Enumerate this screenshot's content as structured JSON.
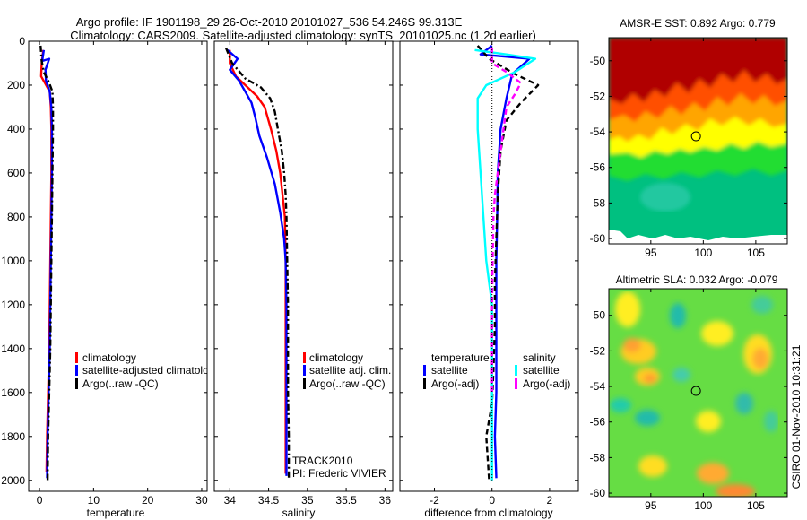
{
  "header": {
    "title": "Argo profile: IF 1901198_29 26-Oct-2010 20101027_536 54.246S 99.313E",
    "subtitle": "Climatology: CARS2009. Satellite-adjusted climatology: synTS_20101025.nc (1.2d earlier)"
  },
  "colors": {
    "climatology": "#ff0000",
    "satellite": "#0000ff",
    "argo": "#000000",
    "salinity_satellite": "#00ffff",
    "salinity_argo": "#ff00ff"
  },
  "footer_stamp": "CSIRO 01-Nov-2010 10:31:21",
  "chart_data": [
    {
      "type": "line",
      "id": "temperature",
      "xlabel": "temperature",
      "ylabel": "",
      "xlim": [
        -2,
        31
      ],
      "ylim": [
        2050,
        0
      ],
      "xticks": [
        0,
        10,
        20,
        30
      ],
      "yticks": [
        0,
        200,
        400,
        600,
        800,
        1000,
        1200,
        1400,
        1600,
        1800,
        2000
      ],
      "legend": [
        "climatology",
        "satellite-adjusted climatology",
        "Argo(..raw -QC)"
      ],
      "series": [
        {
          "name": "climatology",
          "style": "solid",
          "color": "#ff0000",
          "points": [
            [
              0.7,
              40
            ],
            [
              0.4,
              100
            ],
            [
              0.3,
              160
            ],
            [
              1.0,
              190
            ],
            [
              1.9,
              230
            ],
            [
              2.1,
              300
            ],
            [
              2.2,
              400
            ],
            [
              2.2,
              600
            ],
            [
              2.1,
              800
            ],
            [
              2.0,
              1000
            ],
            [
              1.9,
              1200
            ],
            [
              1.8,
              1400
            ],
            [
              1.6,
              1600
            ],
            [
              1.4,
              1800
            ],
            [
              1.3,
              1960
            ]
          ]
        },
        {
          "name": "satellite-adjusted climatology",
          "style": "solid",
          "color": "#0000ff",
          "points": [
            [
              0.8,
              40
            ],
            [
              0.5,
              90
            ],
            [
              1.8,
              80
            ],
            [
              1.1,
              130
            ],
            [
              1.2,
              180
            ],
            [
              1.9,
              230
            ],
            [
              2.2,
              300
            ],
            [
              2.3,
              400
            ],
            [
              2.3,
              600
            ],
            [
              2.2,
              800
            ],
            [
              2.1,
              1000
            ],
            [
              2.0,
              1200
            ],
            [
              1.9,
              1400
            ],
            [
              1.7,
              1600
            ],
            [
              1.5,
              1800
            ],
            [
              1.4,
              1990
            ]
          ]
        },
        {
          "name": "Argo(..raw -QC)",
          "style": "dashdot",
          "color": "#000000",
          "points": [
            [
              0.2,
              20
            ],
            [
              0.4,
              90
            ],
            [
              0.8,
              140
            ],
            [
              1.8,
              190
            ],
            [
              2.4,
              230
            ],
            [
              2.5,
              300
            ],
            [
              2.5,
              400
            ],
            [
              2.4,
              600
            ],
            [
              2.3,
              800
            ],
            [
              2.2,
              1000
            ],
            [
              2.1,
              1200
            ],
            [
              2.0,
              1400
            ],
            [
              1.8,
              1600
            ],
            [
              1.6,
              1800
            ],
            [
              1.5,
              2000
            ]
          ]
        }
      ]
    },
    {
      "type": "line",
      "id": "salinity",
      "xlabel": "salinity",
      "ylabel": "",
      "xlim": [
        33.8,
        36.1
      ],
      "ylim": [
        2050,
        0
      ],
      "xticks": [
        34,
        34.5,
        35,
        35.5,
        36
      ],
      "legend": [
        "climatology",
        "satellite adj. clim.",
        "Argo(..raw -QC)"
      ],
      "annotation": [
        "TRACK2010",
        "PI: Frederic VIVIER"
      ],
      "series": [
        {
          "name": "climatology",
          "style": "solid",
          "color": "#ff0000",
          "points": [
            [
              34.0,
              40
            ],
            [
              34.0,
              100
            ],
            [
              34.08,
              160
            ],
            [
              34.2,
              200
            ],
            [
              34.35,
              250
            ],
            [
              34.45,
              300
            ],
            [
              34.53,
              400
            ],
            [
              34.6,
              500
            ],
            [
              34.65,
              600
            ],
            [
              34.68,
              700
            ],
            [
              34.71,
              800
            ],
            [
              34.72,
              1000
            ],
            [
              34.72,
              1200
            ],
            [
              34.72,
              1400
            ],
            [
              34.72,
              1600
            ],
            [
              34.72,
              1800
            ],
            [
              34.72,
              1970
            ]
          ]
        },
        {
          "name": "satellite adj. clim.",
          "style": "solid",
          "color": "#0000ff",
          "points": [
            [
              33.97,
              40
            ],
            [
              34.1,
              80
            ],
            [
              34.0,
              130
            ],
            [
              34.12,
              180
            ],
            [
              34.2,
              230
            ],
            [
              34.28,
              280
            ],
            [
              34.33,
              350
            ],
            [
              34.38,
              430
            ],
            [
              34.48,
              530
            ],
            [
              34.58,
              650
            ],
            [
              34.65,
              780
            ],
            [
              34.7,
              900
            ],
            [
              34.72,
              1000
            ],
            [
              34.73,
              1200
            ],
            [
              34.73,
              1400
            ],
            [
              34.73,
              1600
            ],
            [
              34.73,
              1800
            ],
            [
              34.73,
              1980
            ]
          ]
        },
        {
          "name": "Argo(..raw -QC)",
          "style": "dashdot",
          "color": "#000000",
          "points": [
            [
              33.95,
              30
            ],
            [
              34.03,
              100
            ],
            [
              34.2,
              170
            ],
            [
              34.4,
              210
            ],
            [
              34.52,
              260
            ],
            [
              34.58,
              320
            ],
            [
              34.62,
              400
            ],
            [
              34.67,
              500
            ],
            [
              34.7,
              600
            ],
            [
              34.72,
              700
            ],
            [
              34.73,
              800
            ],
            [
              34.74,
              1000
            ],
            [
              34.75,
              1200
            ],
            [
              34.75,
              1400
            ],
            [
              34.75,
              1600
            ],
            [
              34.76,
              1800
            ],
            [
              34.76,
              2000
            ]
          ]
        }
      ]
    },
    {
      "type": "line",
      "id": "difference",
      "xlabel": "difference from climatology",
      "ylabel": "",
      "xlim": [
        -3.2,
        3.0
      ],
      "ylim": [
        2050,
        0
      ],
      "xticks": [
        -2,
        0,
        2
      ],
      "legend_temperature_title": "temperature",
      "legend_salinity_title": "salinity",
      "legend_temperature": [
        "satellite",
        "Argo(-adj)"
      ],
      "legend_salinity": [
        "satellite",
        "Argo(-adj)"
      ],
      "series": [
        {
          "name": "temperature satellite",
          "style": "solid",
          "color": "#0000ff",
          "points": [
            [
              0.0,
              20
            ],
            [
              -0.4,
              60
            ],
            [
              1.3,
              80
            ],
            [
              0.7,
              150
            ],
            [
              0.5,
              260
            ],
            [
              0.3,
              400
            ],
            [
              0.2,
              600
            ],
            [
              0.18,
              800
            ],
            [
              0.15,
              1000
            ],
            [
              0.15,
              1200
            ],
            [
              0.15,
              1400
            ],
            [
              0.15,
              1600
            ],
            [
              0.1,
              1800
            ],
            [
              0.15,
              1990
            ]
          ]
        },
        {
          "name": "temperature Argo(-adj)",
          "style": "dashed",
          "color": "#000000",
          "points": [
            [
              -0.5,
              20
            ],
            [
              -0.1,
              80
            ],
            [
              0.8,
              150
            ],
            [
              1.6,
              200
            ],
            [
              1.0,
              280
            ],
            [
              0.5,
              360
            ],
            [
              0.3,
              500
            ],
            [
              0.2,
              700
            ],
            [
              0.15,
              900
            ],
            [
              0.1,
              1100
            ],
            [
              0.1,
              1300
            ],
            [
              0.05,
              1500
            ],
            [
              0.0,
              1650
            ],
            [
              -0.2,
              1800
            ],
            [
              -0.1,
              2000
            ]
          ]
        },
        {
          "name": "salinity satellite",
          "style": "solid",
          "color": "#00ffff",
          "points": [
            [
              -0.6,
              40
            ],
            [
              0.5,
              60
            ],
            [
              1.5,
              80
            ],
            [
              0.8,
              140
            ],
            [
              -0.2,
              200
            ],
            [
              -0.5,
              260
            ],
            [
              -0.5,
              400
            ],
            [
              -0.4,
              600
            ],
            [
              -0.3,
              800
            ],
            [
              -0.2,
              1000
            ],
            [
              -0.1,
              1100
            ],
            [
              0.0,
              1200
            ],
            [
              0.0,
              1400
            ],
            [
              0.0,
              1600
            ],
            [
              0.0,
              1800
            ],
            [
              0.0,
              2000
            ]
          ]
        },
        {
          "name": "salinity Argo(-adj)",
          "style": "dashed",
          "color": "#ff00ff",
          "points": [
            [
              0.0,
              30
            ],
            [
              0.0,
              100
            ],
            [
              0.5,
              140
            ],
            [
              1.0,
              190
            ],
            [
              0.8,
              240
            ],
            [
              0.5,
              300
            ],
            [
              0.4,
              400
            ],
            [
              0.3,
              500
            ],
            [
              0.2,
              600
            ],
            [
              0.1,
              700
            ],
            [
              0.05,
              800
            ],
            [
              0.02,
              1000
            ],
            [
              0.0,
              1200
            ],
            [
              0.0,
              1400
            ],
            [
              0.0,
              1600
            ]
          ]
        },
        {
          "name": "zero line",
          "style": "dotted",
          "color": "#000000",
          "points": [
            [
              0,
              0
            ],
            [
              0,
              2000
            ]
          ]
        }
      ]
    },
    {
      "type": "heatmap",
      "id": "sst",
      "title": "AMSR-E SST: 0.892 Argo: 0.779",
      "xlim": [
        91,
        108
      ],
      "ylim": [
        -60.3,
        -48.7
      ],
      "xticks": [
        95,
        100,
        105
      ],
      "yticks": [
        -50,
        -52,
        -54,
        -56,
        -58,
        -60
      ],
      "marker": [
        99.3,
        -54.25
      ]
    },
    {
      "type": "heatmap",
      "id": "sla",
      "title": "Altimetric SLA: 0.032 Argo: -0.079",
      "xlim": [
        91,
        108
      ],
      "ylim": [
        -60.2,
        -48.5
      ],
      "xticks": [
        95,
        100,
        105
      ],
      "yticks": [
        -50,
        -52,
        -54,
        -56,
        -58,
        -60
      ],
      "marker": [
        99.3,
        -54.25
      ]
    }
  ]
}
